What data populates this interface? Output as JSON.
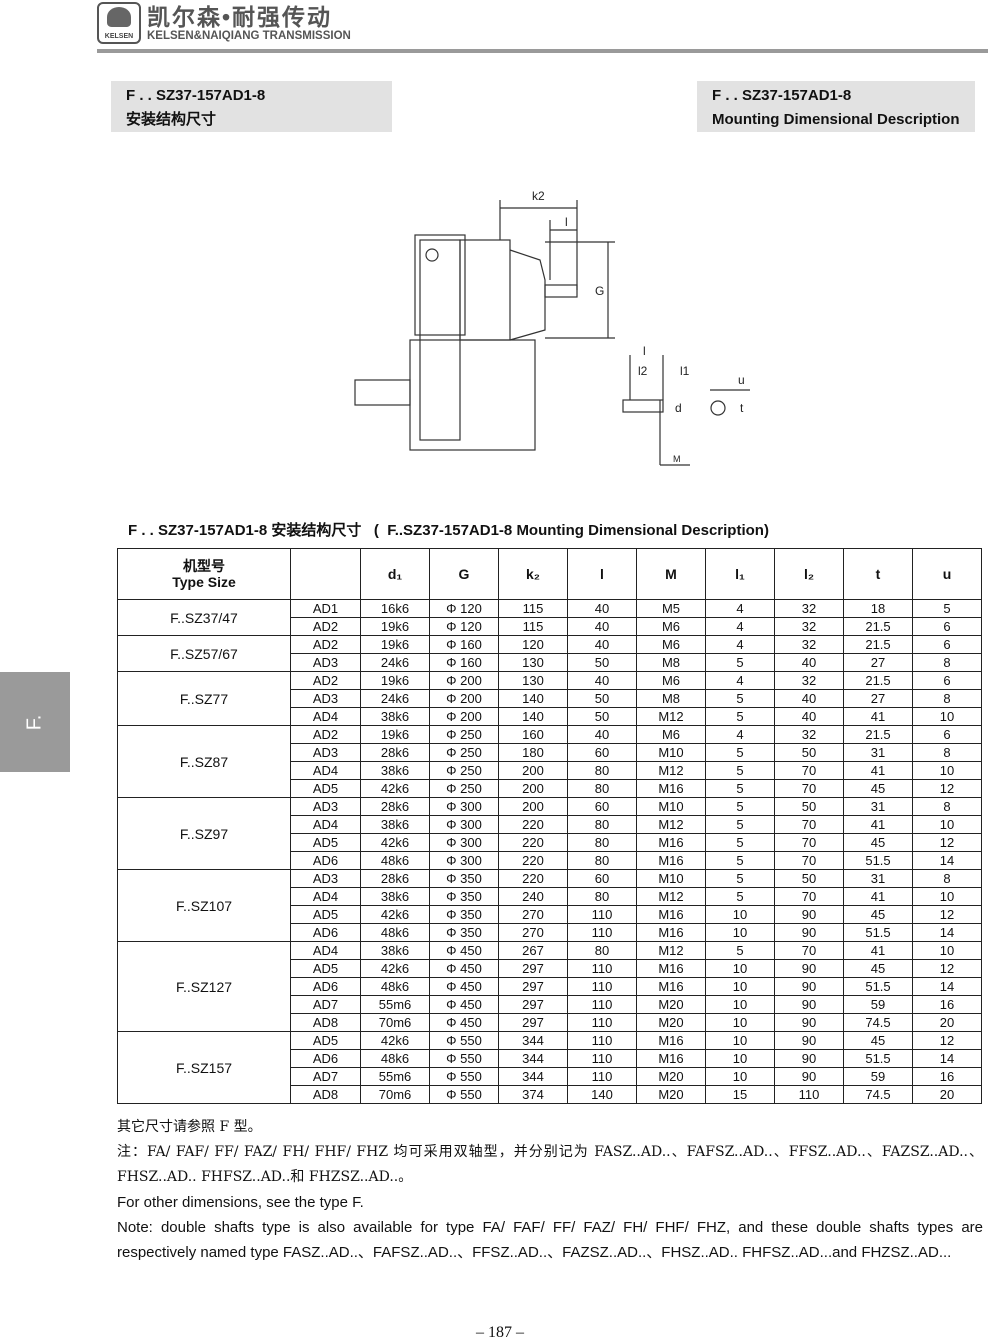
{
  "header": {
    "logo_text": "KELSEN",
    "brand_cn": "凯尔森•耐强传动",
    "brand_en": "KELSEN&NAIQIANG TRANSMISSION"
  },
  "title_left": {
    "line1": "F . . SZ37-157AD1-8",
    "line2": "安装结构尺寸"
  },
  "title_right": {
    "line1": "F . . SZ37-157AD1-8",
    "line2": "Mounting Dimensional Description"
  },
  "drawing_labels": {
    "k2": "k2",
    "l": "l",
    "G": "G",
    "l_small": "l",
    "l2": "l2",
    "l1": "l1",
    "d": "d",
    "M": "M",
    "u": "u",
    "t": "t"
  },
  "table_title": "F . . SZ37-157AD1-8 安装结构尺寸   (  F..SZ37-157AD1-8 Mounting Dimensional Description)",
  "table": {
    "headers": {
      "type_cn": "机型号",
      "type_en": "Type Size",
      "cols": [
        "d₁",
        "G",
        "k₂",
        "l",
        "M",
        "l₁",
        "l₂",
        "t",
        "u"
      ]
    },
    "groups": [
      {
        "type": "F..SZ37/47",
        "rows": [
          [
            "AD1",
            "16k6",
            "Φ 120",
            "115",
            "40",
            "M5",
            "4",
            "32",
            "18",
            "5"
          ],
          [
            "AD2",
            "19k6",
            "Φ 120",
            "115",
            "40",
            "M6",
            "4",
            "32",
            "21.5",
            "6"
          ]
        ]
      },
      {
        "type": "F..SZ57/67",
        "rows": [
          [
            "AD2",
            "19k6",
            "Φ 160",
            "120",
            "40",
            "M6",
            "4",
            "32",
            "21.5",
            "6"
          ],
          [
            "AD3",
            "24k6",
            "Φ 160",
            "130",
            "50",
            "M8",
            "5",
            "40",
            "27",
            "8"
          ]
        ]
      },
      {
        "type": "F..SZ77",
        "rows": [
          [
            "AD2",
            "19k6",
            "Φ 200",
            "130",
            "40",
            "M6",
            "4",
            "32",
            "21.5",
            "6"
          ],
          [
            "AD3",
            "24k6",
            "Φ 200",
            "140",
            "50",
            "M8",
            "5",
            "40",
            "27",
            "8"
          ],
          [
            "AD4",
            "38k6",
            "Φ 200",
            "140",
            "50",
            "M12",
            "5",
            "40",
            "41",
            "10"
          ]
        ]
      },
      {
        "type": "F..SZ87",
        "rows": [
          [
            "AD2",
            "19k6",
            "Φ 250",
            "160",
            "40",
            "M6",
            "4",
            "32",
            "21.5",
            "6"
          ],
          [
            "AD3",
            "28k6",
            "Φ 250",
            "180",
            "60",
            "M10",
            "5",
            "50",
            "31",
            "8"
          ],
          [
            "AD4",
            "38k6",
            "Φ 250",
            "200",
            "80",
            "M12",
            "5",
            "70",
            "41",
            "10"
          ],
          [
            "AD5",
            "42k6",
            "Φ 250",
            "200",
            "80",
            "M16",
            "5",
            "70",
            "45",
            "12"
          ]
        ]
      },
      {
        "type": "F..SZ97",
        "rows": [
          [
            "AD3",
            "28k6",
            "Φ 300",
            "200",
            "60",
            "M10",
            "5",
            "50",
            "31",
            "8"
          ],
          [
            "AD4",
            "38k6",
            "Φ 300",
            "220",
            "80",
            "M12",
            "5",
            "70",
            "41",
            "10"
          ],
          [
            "AD5",
            "42k6",
            "Φ 300",
            "220",
            "80",
            "M16",
            "5",
            "70",
            "45",
            "12"
          ],
          [
            "AD6",
            "48k6",
            "Φ 300",
            "220",
            "80",
            "M16",
            "5",
            "70",
            "51.5",
            "14"
          ]
        ]
      },
      {
        "type": "F..SZ107",
        "rows": [
          [
            "AD3",
            "28k6",
            "Φ 350",
            "220",
            "60",
            "M10",
            "5",
            "50",
            "31",
            "8"
          ],
          [
            "AD4",
            "38k6",
            "Φ 350",
            "240",
            "80",
            "M12",
            "5",
            "70",
            "41",
            "10"
          ],
          [
            "AD5",
            "42k6",
            "Φ 350",
            "270",
            "110",
            "M16",
            "10",
            "90",
            "45",
            "12"
          ],
          [
            "AD6",
            "48k6",
            "Φ 350",
            "270",
            "110",
            "M16",
            "10",
            "90",
            "51.5",
            "14"
          ]
        ]
      },
      {
        "type": "F..SZ127",
        "rows": [
          [
            "AD4",
            "38k6",
            "Φ 450",
            "267",
            "80",
            "M12",
            "5",
            "70",
            "41",
            "10"
          ],
          [
            "AD5",
            "42k6",
            "Φ 450",
            "297",
            "110",
            "M16",
            "10",
            "90",
            "45",
            "12"
          ],
          [
            "AD6",
            "48k6",
            "Φ 450",
            "297",
            "110",
            "M16",
            "10",
            "90",
            "51.5",
            "14"
          ],
          [
            "AD7",
            "55m6",
            "Φ 450",
            "297",
            "110",
            "M20",
            "10",
            "90",
            "59",
            "16"
          ],
          [
            "AD8",
            "70m6",
            "Φ 450",
            "297",
            "110",
            "M20",
            "10",
            "90",
            "74.5",
            "20"
          ]
        ]
      },
      {
        "type": "F..SZ157",
        "rows": [
          [
            "AD5",
            "42k6",
            "Φ 550",
            "344",
            "110",
            "M16",
            "10",
            "90",
            "45",
            "12"
          ],
          [
            "AD6",
            "48k6",
            "Φ 550",
            "344",
            "110",
            "M16",
            "10",
            "90",
            "51.5",
            "14"
          ],
          [
            "AD7",
            "55m6",
            "Φ 550",
            "344",
            "110",
            "M20",
            "10",
            "90",
            "59",
            "16"
          ],
          [
            "AD8",
            "70m6",
            "Φ 550",
            "374",
            "140",
            "M20",
            "15",
            "110",
            "74.5",
            "20"
          ]
        ]
      }
    ]
  },
  "notes": {
    "cn1": "其它尺寸请参照   F 型。",
    "cn2": "注：FA/ FAF/ FF/ FAZ/ FH/ FHF/ FHZ 均可采用双轴型，并分别记为  FASZ..AD..、FAFSZ..AD..、FFSZ..AD..、FAZSZ..AD..、FHSZ..AD.. FHFSZ..AD..和  FHZSZ..AD..。",
    "en1": "For other dimensions, see the type   F.",
    "en2": "Note: double shafts type is also available for type   FA/ FAF/ FF/ FAZ/ FH/ FHF/ FHZ, and these double shafts types are respectively named type   FASZ..AD..、FAFSZ..AD..、FFSZ..AD..、FAZSZ..AD..、FHSZ..AD.. FHFSZ..AD...and   FHZSZ..AD..."
  },
  "side_tab": "F.",
  "page_number": "– 187 –"
}
